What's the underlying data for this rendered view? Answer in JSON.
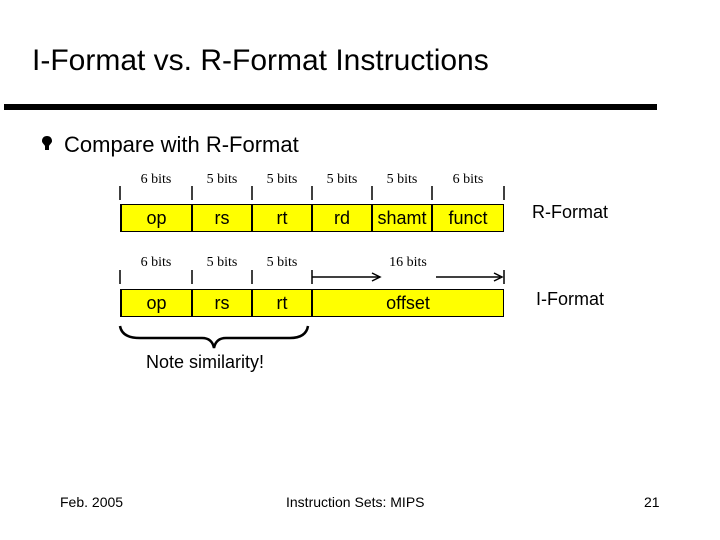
{
  "slide": {
    "title": "I-Format vs. R-Format Instructions",
    "bullet": "Compare with R-Format",
    "note": "Note similarity!"
  },
  "r_format": {
    "label": "R-Format",
    "bits": [
      "6 bits",
      "5 bits",
      "5 bits",
      "5 bits",
      "5 bits",
      "6 bits"
    ],
    "fields": [
      "op",
      "rs",
      "rt",
      "rd",
      "shamt",
      "funct"
    ]
  },
  "i_format": {
    "label": "I-Format",
    "bits": [
      "6 bits",
      "5 bits",
      "5 bits",
      "16 bits"
    ],
    "fields": [
      "op",
      "rs",
      "rt",
      "offset"
    ]
  },
  "footer": {
    "date": "Feb. 2005",
    "center": "Instruction Sets: MIPS",
    "page": "21"
  },
  "colors": {
    "field_fill": "#ffff00",
    "rule": "#000000"
  }
}
